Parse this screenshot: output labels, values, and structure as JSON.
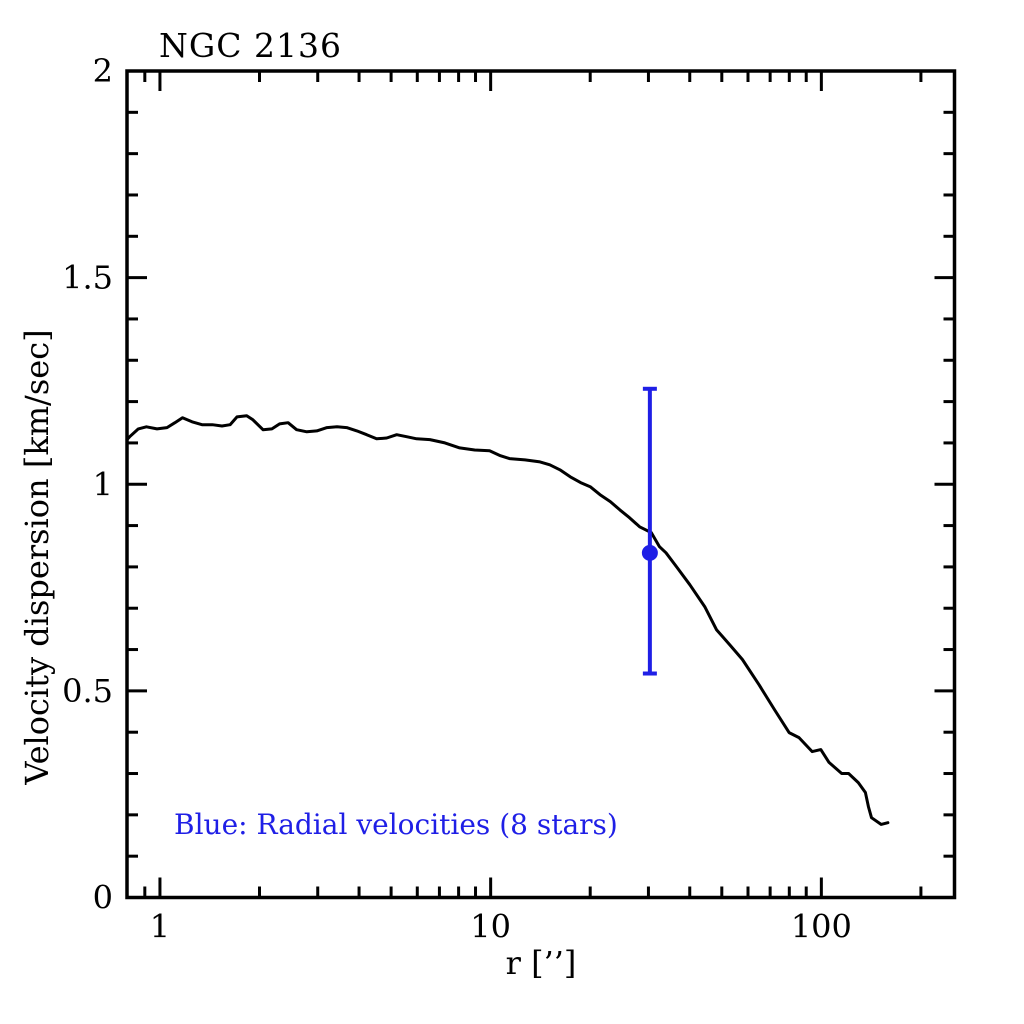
{
  "chart_data": {
    "type": "line",
    "title": "NGC 2136",
    "xlabel": "r [’’]",
    "ylabel": "Velocity dispersion [km/sec]",
    "x_scale": "log",
    "y_scale": "linear",
    "xlim": [
      0.795,
      252.7
    ],
    "ylim": [
      0,
      2
    ],
    "grid": false,
    "colors": {
      "axis": "#000000",
      "curve": "#000000",
      "radial_velocity": "#1f1fe6",
      "background": "#ffffff"
    },
    "x_ticks": {
      "major": [
        {
          "v": 1,
          "label": "1"
        },
        {
          "v": 10,
          "label": "10"
        },
        {
          "v": 100,
          "label": "100"
        }
      ],
      "minor": [
        0.9,
        2,
        3,
        4,
        5,
        6,
        7,
        8,
        9,
        20,
        30,
        40,
        50,
        60,
        70,
        80,
        90,
        200
      ]
    },
    "y_ticks": {
      "major": [
        {
          "v": 0,
          "label": "0"
        },
        {
          "v": 0.5,
          "label": "0.5"
        },
        {
          "v": 1,
          "label": "1"
        },
        {
          "v": 1.5,
          "label": "1.5"
        },
        {
          "v": 2,
          "label": "2"
        }
      ],
      "minor": [
        0.1,
        0.2,
        0.3,
        0.4,
        0.6,
        0.7,
        0.8,
        0.9,
        1.1,
        1.2,
        1.3,
        1.4,
        1.6,
        1.7,
        1.8,
        1.9
      ]
    },
    "annotation": {
      "text": "Blue: Radial velocities (8 stars)",
      "color": "#1f1fe6"
    },
    "series": [
      {
        "name": "velocity-dispersion-profile",
        "type": "line",
        "color": "#000000",
        "points": [
          [
            0.795,
            1.108
          ],
          [
            0.81,
            1.115
          ],
          [
            0.86,
            1.134
          ],
          [
            0.91,
            1.139
          ],
          [
            0.98,
            1.134
          ],
          [
            1.05,
            1.137
          ],
          [
            1.11,
            1.149
          ],
          [
            1.17,
            1.161
          ],
          [
            1.25,
            1.151
          ],
          [
            1.34,
            1.144
          ],
          [
            1.44,
            1.144
          ],
          [
            1.54,
            1.141
          ],
          [
            1.63,
            1.144
          ],
          [
            1.71,
            1.163
          ],
          [
            1.83,
            1.166
          ],
          [
            1.91,
            1.156
          ],
          [
            2.05,
            1.132
          ],
          [
            2.18,
            1.134
          ],
          [
            2.3,
            1.146
          ],
          [
            2.44,
            1.149
          ],
          [
            2.59,
            1.132
          ],
          [
            2.78,
            1.127
          ],
          [
            2.98,
            1.129
          ],
          [
            3.2,
            1.137
          ],
          [
            3.43,
            1.139
          ],
          [
            3.67,
            1.137
          ],
          [
            3.94,
            1.129
          ],
          [
            4.22,
            1.12
          ],
          [
            4.52,
            1.11
          ],
          [
            4.85,
            1.112
          ],
          [
            5.2,
            1.12
          ],
          [
            5.57,
            1.115
          ],
          [
            5.97,
            1.11
          ],
          [
            6.55,
            1.108
          ],
          [
            7.27,
            1.1
          ],
          [
            8.06,
            1.088
          ],
          [
            8.95,
            1.083
          ],
          [
            9.93,
            1.081
          ],
          [
            10.7,
            1.069
          ],
          [
            11.4,
            1.062
          ],
          [
            12.7,
            1.059
          ],
          [
            14.1,
            1.054
          ],
          [
            15.1,
            1.047
          ],
          [
            16.2,
            1.035
          ],
          [
            17.4,
            1.018
          ],
          [
            18.7,
            1.004
          ],
          [
            20,
            0.994
          ],
          [
            21.4,
            0.975
          ],
          [
            23,
            0.958
          ],
          [
            24.6,
            0.938
          ],
          [
            26.3,
            0.919
          ],
          [
            28.2,
            0.897
          ],
          [
            30.6,
            0.883
          ],
          [
            32.4,
            0.849
          ],
          [
            33.9,
            0.834
          ],
          [
            36.5,
            0.8
          ],
          [
            40,
            0.757
          ],
          [
            44.4,
            0.704
          ],
          [
            48.2,
            0.648
          ],
          [
            52.8,
            0.612
          ],
          [
            57.7,
            0.576
          ],
          [
            64.8,
            0.515
          ],
          [
            72.1,
            0.455
          ],
          [
            79.9,
            0.399
          ],
          [
            85.6,
            0.387
          ],
          [
            93.8,
            0.353
          ],
          [
            99.6,
            0.358
          ],
          [
            105.5,
            0.327
          ],
          [
            115.2,
            0.3
          ],
          [
            120.9,
            0.3
          ],
          [
            129.3,
            0.278
          ],
          [
            135.9,
            0.254
          ],
          [
            138.8,
            0.22
          ],
          [
            141.8,
            0.193
          ],
          [
            151.6,
            0.177
          ],
          [
            158.9,
            0.181
          ]
        ]
      },
      {
        "name": "radial-velocities",
        "label": "Radial velocities (8 stars)",
        "type": "point-with-errorbar",
        "color": "#1f1fe6",
        "point": {
          "r": 30.3,
          "sigma": 0.834,
          "upper": 1.231,
          "lower": 0.542
        }
      }
    ]
  }
}
